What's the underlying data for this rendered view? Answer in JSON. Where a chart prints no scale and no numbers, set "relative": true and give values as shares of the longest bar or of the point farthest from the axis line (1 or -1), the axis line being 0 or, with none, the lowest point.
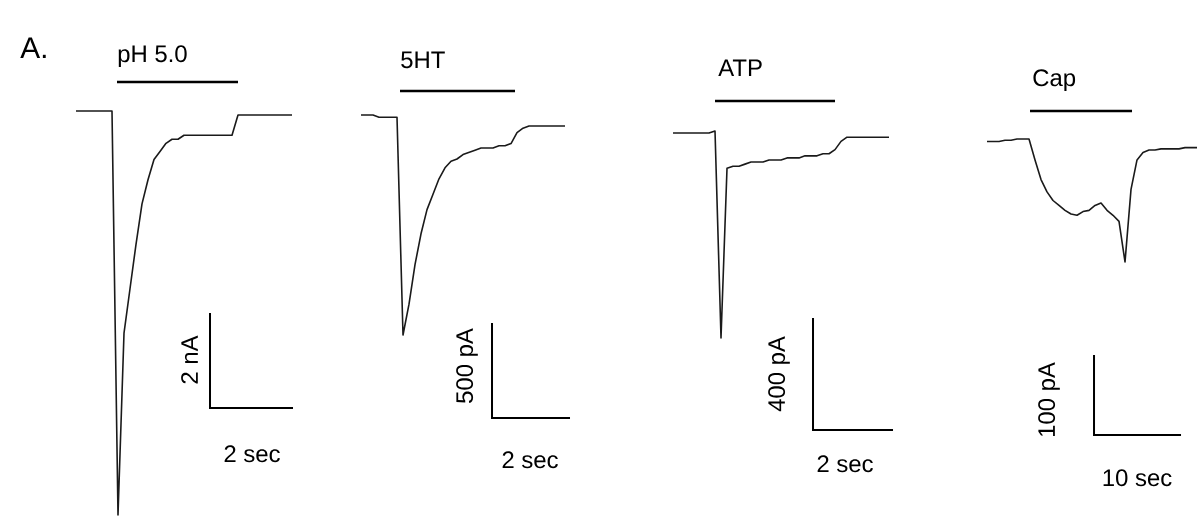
{
  "chart_data": [
    {
      "type": "line",
      "relative": true,
      "title": "pH 5.0",
      "color": "#1a1a1a",
      "annotations": [
        "A.",
        "2 nA",
        "2 sec"
      ],
      "categories": [
        null,
        null,
        null,
        null,
        null,
        null,
        null,
        null,
        null,
        null,
        null,
        null,
        null,
        null,
        null,
        null,
        null,
        null,
        null,
        null,
        null,
        null,
        null,
        null,
        null,
        null,
        null,
        null,
        null,
        null,
        null,
        null,
        null,
        null,
        null,
        null,
        null
      ],
      "values": [
        1,
        1,
        1,
        1,
        1,
        1,
        1,
        0,
        0.45,
        0.56,
        0.67,
        0.77,
        0.83,
        0.88,
        0.9,
        0.92,
        0.93,
        0.93,
        0.94,
        0.94,
        0.94,
        0.94,
        0.94,
        0.94,
        0.94,
        0.94,
        0.94,
        0.99,
        0.99,
        0.99,
        0.99,
        0.99,
        0.99,
        0.99,
        0.99,
        0.99,
        0.99
      ]
    },
    {
      "type": "line",
      "relative": true,
      "title": "5HT",
      "color": "#1a1a1a",
      "annotations": [
        "500 pA",
        "2 sec"
      ],
      "categories": [
        null,
        null,
        null,
        null,
        null,
        null,
        null,
        null,
        null,
        null,
        null,
        null,
        null,
        null,
        null,
        null,
        null,
        null,
        null,
        null,
        null,
        null,
        null,
        null,
        null,
        null,
        null,
        null,
        null,
        null,
        null,
        null,
        null,
        null,
        null
      ],
      "values": [
        1,
        1,
        1,
        0.99,
        0.99,
        0.99,
        0.99,
        0,
        0.14,
        0.32,
        0.46,
        0.57,
        0.64,
        0.71,
        0.76,
        0.79,
        0.8,
        0.82,
        0.83,
        0.84,
        0.85,
        0.85,
        0.85,
        0.86,
        0.86,
        0.87,
        0.92,
        0.94,
        0.95,
        0.95,
        0.95,
        0.95,
        0.95,
        0.95,
        0.95
      ]
    },
    {
      "type": "line",
      "relative": true,
      "title": "ATP",
      "color": "#1a1a1a",
      "annotations": [
        "400 pA",
        "2 sec"
      ],
      "categories": [
        null,
        null,
        null,
        null,
        null,
        null,
        null,
        null,
        null,
        null,
        null,
        null,
        null,
        null,
        null,
        null,
        null,
        null,
        null,
        null,
        null,
        null,
        null,
        null,
        null,
        null,
        null,
        null,
        null,
        null,
        null,
        null,
        null,
        null,
        null,
        null,
        null
      ],
      "values": [
        0.99,
        0.99,
        0.99,
        0.99,
        0.99,
        0.99,
        0.99,
        1,
        0,
        0.82,
        0.83,
        0.83,
        0.84,
        0.85,
        0.85,
        0.85,
        0.86,
        0.86,
        0.86,
        0.87,
        0.87,
        0.87,
        0.88,
        0.88,
        0.88,
        0.89,
        0.89,
        0.91,
        0.95,
        0.97,
        0.97,
        0.97,
        0.97,
        0.97,
        0.97,
        0.97,
        0.97
      ]
    },
    {
      "type": "line",
      "relative": true,
      "title": "Cap",
      "color": "#1a1a1a",
      "annotations": [
        "100 pA",
        "10 sec"
      ],
      "categories": [
        null,
        null,
        null,
        null,
        null,
        null,
        null,
        null,
        null,
        null,
        null,
        null,
        null,
        null,
        null,
        null,
        null,
        null,
        null,
        null,
        null,
        null,
        null,
        null,
        null,
        null,
        null,
        null,
        null,
        null,
        null,
        null,
        null,
        null,
        null,
        null
      ],
      "values": [
        0.98,
        0.98,
        0.98,
        0.99,
        0.99,
        1,
        1,
        1,
        0.83,
        0.67,
        0.57,
        0.5,
        0.46,
        0.42,
        0.39,
        0.38,
        0.41,
        0.42,
        0.46,
        0.48,
        0.42,
        0.38,
        0.33,
        0,
        0.59,
        0.83,
        0.89,
        0.91,
        0.91,
        0.92,
        0.92,
        0.92,
        0.92,
        0.93,
        0.93,
        0.93
      ]
    }
  ]
}
